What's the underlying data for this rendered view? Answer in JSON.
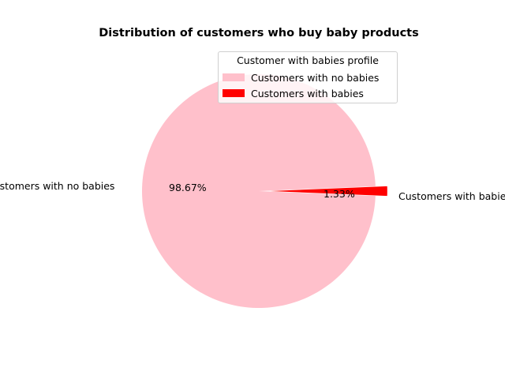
{
  "chart_data": {
    "type": "pie",
    "title": "Distribution of customers who buy baby products",
    "legend": {
      "title": "Customer with babies profile",
      "placement": "top"
    },
    "slices": [
      {
        "label": "Customers with no babies",
        "value": 98.67,
        "pct_label": "98.67%",
        "color": "#ffc0cb",
        "explode": 0.0
      },
      {
        "label": "Customers with babies",
        "value": 1.33,
        "pct_label": "1.33%",
        "color": "#ff0000",
        "explode": 0.1
      }
    ]
  }
}
